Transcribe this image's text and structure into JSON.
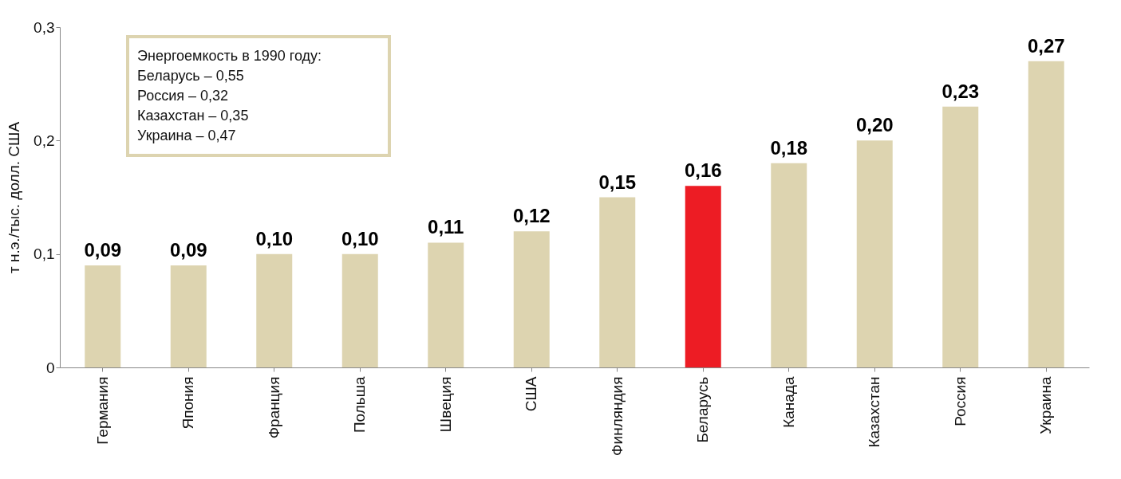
{
  "chart_data": {
    "type": "bar",
    "ylabel": "т н.э./тыс. долл. США",
    "categories": [
      "Германия",
      "Япония",
      "Франция",
      "Польша",
      "Швеция",
      "США",
      "Финляндия",
      "Беларусь",
      "Канада",
      "Казахстан",
      "Россия",
      "Украина"
    ],
    "values": [
      0.09,
      0.09,
      0.1,
      0.1,
      0.11,
      0.12,
      0.15,
      0.16,
      0.18,
      0.2,
      0.23,
      0.27
    ],
    "value_labels": [
      "0,09",
      "0,09",
      "0,10",
      "0,10",
      "0,11",
      "0,12",
      "0,15",
      "0,16",
      "0,18",
      "0,20",
      "0,23",
      "0,27"
    ],
    "colors": [
      "#ddd4b0",
      "#ddd4b0",
      "#ddd4b0",
      "#ddd4b0",
      "#ddd4b0",
      "#ddd4b0",
      "#ddd4b0",
      "#ed1c24",
      "#ddd4b0",
      "#ddd4b0",
      "#ddd4b0",
      "#ddd4b0"
    ],
    "ylim": [
      0,
      0.3
    ],
    "yticks": [
      {
        "value": 0,
        "label": "0"
      },
      {
        "value": 0.1,
        "label": "0,1"
      },
      {
        "value": 0.2,
        "label": "0,2"
      },
      {
        "value": 0.3,
        "label": "0,3"
      }
    ],
    "grid": false,
    "legend": false,
    "annotations": [
      "Энергоемкость в 1990 году:",
      "Беларусь – 0,55",
      "Россия – 0,32",
      "Казахстан – 0,35",
      "Украина – 0,47"
    ]
  }
}
